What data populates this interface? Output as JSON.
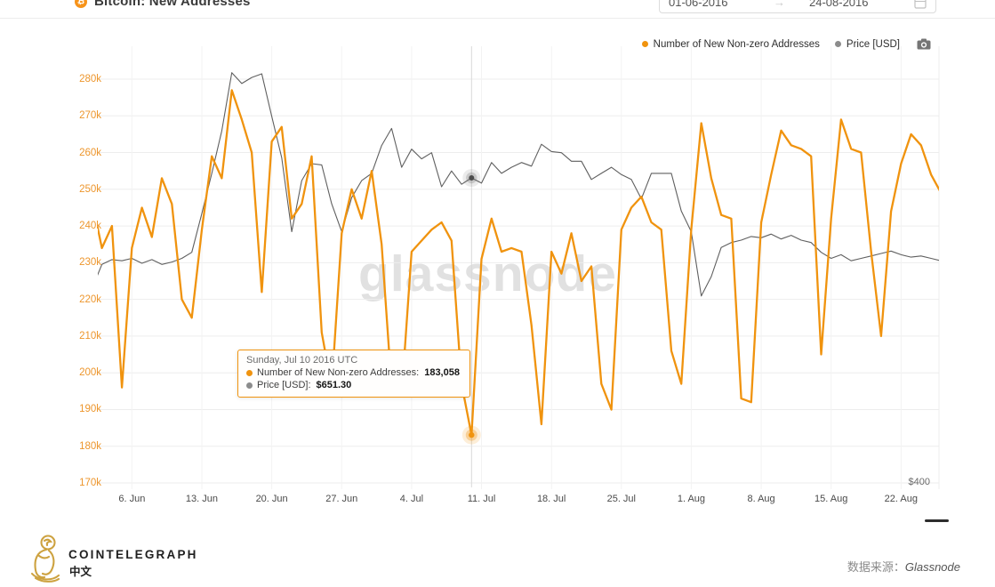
{
  "header": {
    "title": "Bitcoin: New Addresses",
    "icon_glyph": "₿",
    "date_from": "01-06-2016",
    "date_to": "24-08-2016",
    "arrow": "→"
  },
  "legend": [
    {
      "label": "Number of New Non-zero Addresses",
      "color": "#F0930E"
    },
    {
      "label": "Price [USD]",
      "color": "#8C8C8C"
    }
  ],
  "watermark": "glassnode",
  "tooltip": {
    "date_label": "Sunday, Jul 10 2016 UTC",
    "rows": [
      {
        "label": "Number of New Non-zero Addresses",
        "value": "183,058",
        "color": "#F0930E"
      },
      {
        "label": "Price [USD]",
        "value": "$651.30",
        "color": "#8C8C8C"
      }
    ]
  },
  "footer": {
    "brand": "COINTELEGRAPH",
    "brand_sub": "中文",
    "source_label": "数据来源：",
    "source_value": "Glassnode"
  },
  "chart_data": {
    "type": "line",
    "title": "Bitcoin: New Addresses",
    "x_start_date": "2016-06-02",
    "x_tick_labels": [
      "6. Jun",
      "13. Jun",
      "20. Jun",
      "27. Jun",
      "4. Jul",
      "11. Jul",
      "18. Jul",
      "25. Jul",
      "1. Aug",
      "8. Aug",
      "15. Aug",
      "22. Aug"
    ],
    "x_tick_first_index": 4,
    "x_tick_step": 7,
    "y_left": {
      "tick_labels": [
        "280k",
        "270k",
        "260k",
        "250k",
        "240k",
        "230k",
        "220k",
        "210k",
        "200k",
        "190k",
        "180k",
        "170k"
      ],
      "min": 170000,
      "max": 280000,
      "color": "#ED962D"
    },
    "y_right": {
      "visible_label": "$400",
      "min_shown": 400,
      "anchor_price": 651.3
    },
    "grid": true,
    "legend_position": "top-right",
    "series": [
      {
        "name": "Number of New Non-zero Addresses",
        "color": "#F0930E",
        "values": [
          247000,
          234000,
          240000,
          196000,
          234000,
          245000,
          237000,
          253000,
          246000,
          220000,
          215000,
          239000,
          259000,
          253000,
          277000,
          269000,
          260000,
          222000,
          263000,
          267000,
          242000,
          246000,
          259000,
          211000,
          196000,
          238000,
          250000,
          242000,
          255000,
          235000,
          196000,
          194000,
          233000,
          236000,
          239000,
          241000,
          236000,
          197000,
          183058,
          231000,
          242000,
          233000,
          234000,
          233000,
          213000,
          186000,
          233000,
          227000,
          238000,
          225000,
          229000,
          197000,
          190000,
          239000,
          245000,
          248000,
          241000,
          239000,
          206000,
          197000,
          239000,
          268000,
          253000,
          243000,
          242000,
          193000,
          192000,
          241000,
          254000,
          266000,
          262000,
          261000,
          259000,
          205000,
          242000,
          269000,
          261000,
          260000,
          233000,
          210000,
          244000,
          257000,
          265000,
          262000,
          254000,
          249000
        ]
      },
      {
        "name": "Price [USD]",
        "color": "#5F5F5F",
        "values": [
          560,
          580,
          584,
          583,
          585,
          581,
          584,
          580,
          582,
          585,
          590,
          622,
          655,
          690,
          738,
          729,
          734,
          737,
          702,
          668,
          607,
          649,
          663,
          662,
          630,
          607,
          635,
          649,
          655,
          678,
          692,
          660,
          675,
          667,
          672,
          644,
          657,
          646,
          651.3,
          647,
          664,
          655,
          660,
          664,
          661,
          679,
          673,
          672,
          665,
          665,
          650,
          655,
          660,
          654,
          650,
          634,
          655,
          655,
          655,
          624,
          607,
          554,
          570,
          594,
          598,
          600,
          603,
          602,
          605,
          601,
          604,
          600,
          598,
          590,
          585,
          588,
          583,
          585,
          587,
          589,
          591,
          588,
          586,
          587,
          585,
          583
        ]
      }
    ],
    "highlight": {
      "date": "2016-07-10",
      "index": 38,
      "address_value": 183058,
      "price_value": 651.3
    }
  }
}
